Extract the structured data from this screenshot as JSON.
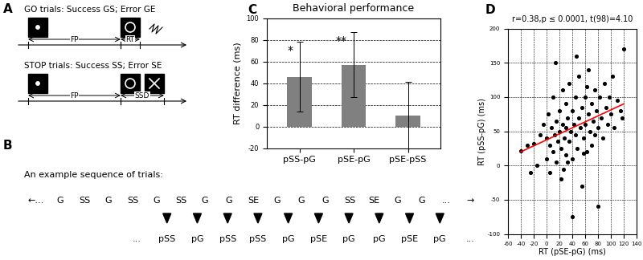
{
  "panel_a": {
    "label": "A",
    "rows": [
      {
        "title": "GO trials: Success GS; Error GE",
        "intervals": [
          "FP",
          "RT"
        ]
      },
      {
        "title": "STOP trials: Success SS; Error SE",
        "intervals": [
          "FP",
          "SSD"
        ]
      }
    ]
  },
  "panel_b": {
    "label": "B",
    "title": "An example sequence of trials:",
    "sequence": [
      "←...",
      "G",
      "SS",
      "G",
      "SS",
      "G",
      "SS",
      "G",
      "G",
      "SE",
      "G",
      "G",
      "G",
      "SS",
      "SE",
      "G",
      "G",
      "...",
      "→"
    ],
    "previous": [
      "...",
      "pSS",
      "pG",
      "pSS",
      "pSS",
      "pG",
      "pSE",
      "pG",
      "pG",
      "pSE",
      "pG",
      "..."
    ]
  },
  "chart_data": [
    {
      "panel": "C",
      "type": "bar",
      "title": "Behavioral performance",
      "y_label": "RT difference (ms)",
      "categories": [
        "pSS-pG",
        "pSE-pG",
        "pSE-pSS"
      ],
      "values": [
        46,
        57,
        10
      ],
      "errors": [
        32,
        30,
        31
      ],
      "significance": [
        {
          "category": "pSS-pG",
          "label": "*"
        },
        {
          "category": "pSE-pG",
          "label": "**"
        }
      ],
      "color": "#808080",
      "ylim": [
        -20,
        100
      ],
      "yticks": [
        -20,
        0,
        20,
        40,
        60,
        80,
        100
      ],
      "grid": true
    },
    {
      "panel": "D",
      "type": "scatter",
      "title": "r=0.38,p ≤ 0.0001, t(98)=4.10",
      "x_label": "RT (pSE-pG) (ms)",
      "y_label": "RT (pSS-pG) (ms)",
      "series": [
        {
          "type": "scatter",
          "color": "#000000",
          "x": [
            -40,
            -30,
            -20,
            -15,
            -10,
            -5,
            0,
            0,
            2,
            5,
            5,
            8,
            10,
            10,
            12,
            15,
            15,
            18,
            20,
            20,
            22,
            22,
            25,
            25,
            28,
            30,
            30,
            30,
            32,
            35,
            35,
            38,
            40,
            40,
            40,
            42,
            45,
            45,
            48,
            50,
            50,
            52,
            55,
            55,
            58,
            60,
            60,
            62,
            65,
            65,
            68,
            70,
            70,
            72,
            75,
            75,
            78,
            80,
            80,
            82,
            85,
            88,
            90,
            92,
            95,
            98,
            100,
            102,
            105,
            110,
            115,
            120,
            118,
            -25,
            14,
            26,
            46,
            63,
            33,
            57
          ],
          "values": [
            22,
            30,
            32,
            0,
            45,
            60,
            10,
            40,
            75,
            30,
            -10,
            55,
            20,
            100,
            45,
            65,
            5,
            35,
            80,
            50,
            -20,
            25,
            60,
            110,
            40,
            15,
            90,
            55,
            70,
            35,
            120,
            50,
            -75,
            10,
            80,
            60,
            45,
            100,
            25,
            70,
            130,
            55,
            85,
            -30,
            40,
            60,
            100,
            20,
            75,
            140,
            50,
            90,
            30,
            65,
            110,
            45,
            80,
            -60,
            55,
            100,
            70,
            40,
            120,
            85,
            60,
            100,
            75,
            130,
            55,
            95,
            80,
            170,
            70,
            -10,
            150,
            -5,
            160,
            115,
            5,
            18
          ]
        },
        {
          "type": "line",
          "color": "#ff0000",
          "x": [
            -40,
            120
          ],
          "values": [
            20,
            90
          ]
        }
      ],
      "xlim": [
        -60,
        140
      ],
      "xticks": [
        -60,
        -40,
        -20,
        0,
        20,
        40,
        60,
        80,
        100,
        120,
        140
      ],
      "ylim": [
        -100,
        200
      ],
      "yticks": [
        -100,
        -50,
        0,
        50,
        100,
        150,
        200
      ],
      "grid": true
    }
  ]
}
